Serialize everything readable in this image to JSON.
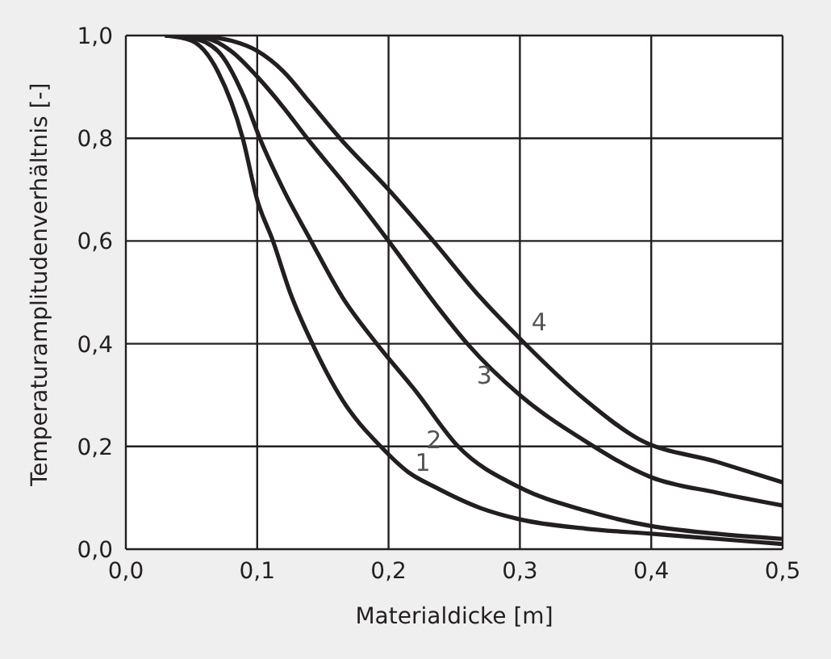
{
  "chart_data": {
    "type": "line",
    "xlabel": "Materialdicke [m]",
    "ylabel": "Temperaturamplitudenverhältnis [-]",
    "xlim": [
      0,
      0.5
    ],
    "ylim": [
      0,
      1
    ],
    "xticks": [
      {
        "value": 0,
        "label": "0,0"
      },
      {
        "value": 0.1,
        "label": "0,1"
      },
      {
        "value": 0.2,
        "label": "0,2"
      },
      {
        "value": 0.3,
        "label": "0,3"
      },
      {
        "value": 0.4,
        "label": "0,4"
      },
      {
        "value": 0.5,
        "label": "0,5"
      }
    ],
    "yticks": [
      {
        "value": 0,
        "label": "0,0"
      },
      {
        "value": 0.2,
        "label": "0,2"
      },
      {
        "value": 0.4,
        "label": "0,4"
      },
      {
        "value": 0.6,
        "label": "0,6"
      },
      {
        "value": 0.8,
        "label": "0,8"
      },
      {
        "value": 1,
        "label": "1,0"
      }
    ],
    "grid": true,
    "marker": "none",
    "line_style": "solid",
    "series": [
      {
        "name": "1",
        "color": "#231f20",
        "x": [
          0.03,
          0.05,
          0.07,
          0.089,
          0.1,
          0.112,
          0.125,
          0.142,
          0.165,
          0.194,
          0.215,
          0.236,
          0.27,
          0.3,
          0.35,
          0.4,
          0.45,
          0.5
        ],
        "values": [
          1,
          0.99,
          0.93,
          0.8,
          0.68,
          0.6,
          0.5,
          0.4,
          0.29,
          0.2,
          0.15,
          0.12,
          0.08,
          0.058,
          0.04,
          0.03,
          0.02,
          0.01
        ]
      },
      {
        "name": "2",
        "color": "#231f20",
        "x": [
          0.03,
          0.05,
          0.07,
          0.09,
          0.102,
          0.12,
          0.141,
          0.165,
          0.191,
          0.22,
          0.253,
          0.3,
          0.35,
          0.4,
          0.45,
          0.5
        ],
        "values": [
          1,
          0.995,
          0.97,
          0.88,
          0.8,
          0.7,
          0.6,
          0.49,
          0.4,
          0.31,
          0.2,
          0.12,
          0.075,
          0.045,
          0.03,
          0.02
        ]
      },
      {
        "name": "3",
        "color": "#231f20",
        "x": [
          0.03,
          0.06,
          0.08,
          0.1,
          0.12,
          0.138,
          0.17,
          0.2,
          0.236,
          0.26,
          0.3,
          0.35,
          0.4,
          0.45,
          0.5
        ],
        "values": [
          1,
          0.995,
          0.97,
          0.92,
          0.86,
          0.8,
          0.7,
          0.6,
          0.476,
          0.4,
          0.3,
          0.21,
          0.14,
          0.11,
          0.085
        ]
      },
      {
        "name": "4",
        "color": "#231f20",
        "x": [
          0.03,
          0.06,
          0.08,
          0.1,
          0.12,
          0.14,
          0.163,
          0.2,
          0.234,
          0.27,
          0.3,
          0.35,
          0.39,
          0.45,
          0.5
        ],
        "values": [
          1,
          0.998,
          0.99,
          0.97,
          0.93,
          0.87,
          0.8,
          0.7,
          0.6,
          0.49,
          0.41,
          0.29,
          0.215,
          0.17,
          0.13
        ]
      }
    ]
  }
}
